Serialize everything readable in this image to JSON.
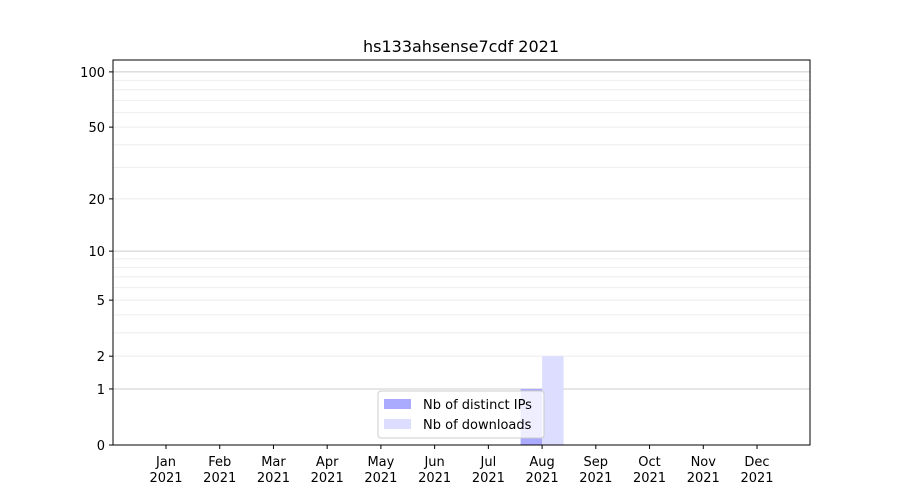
{
  "chart_data": {
    "type": "bar",
    "title": "hs133ahsense7cdf 2021",
    "xlabel": "",
    "ylabel": "",
    "y_scale": "log(1+y)",
    "ylim": [
      0,
      116
    ],
    "y_ticks": [
      0,
      1,
      2,
      5,
      10,
      20,
      50,
      100
    ],
    "y_major_grid": [
      1,
      10,
      100
    ],
    "y_minor_grid": [
      2,
      3,
      4,
      5,
      6,
      7,
      8,
      9,
      20,
      30,
      40,
      50,
      60,
      70,
      80,
      90
    ],
    "grid": true,
    "categories": [
      "Jan\n2021",
      "Feb\n2021",
      "Mar\n2021",
      "Apr\n2021",
      "May\n2021",
      "Jun\n2021",
      "Jul\n2021",
      "Aug\n2021",
      "Sep\n2021",
      "Oct\n2021",
      "Nov\n2021",
      "Dec\n2021"
    ],
    "series": [
      {
        "name": "Nb of distinct IPs",
        "color": "#aaaaff",
        "values": [
          0,
          0,
          0,
          0,
          0,
          0,
          0,
          1,
          0,
          0,
          0,
          0
        ]
      },
      {
        "name": "Nb of downloads",
        "color": "#ddddff",
        "values": [
          0,
          0,
          0,
          0,
          0,
          0,
          0,
          2,
          0,
          0,
          0,
          0
        ]
      }
    ],
    "legend_position": "lower-center"
  }
}
